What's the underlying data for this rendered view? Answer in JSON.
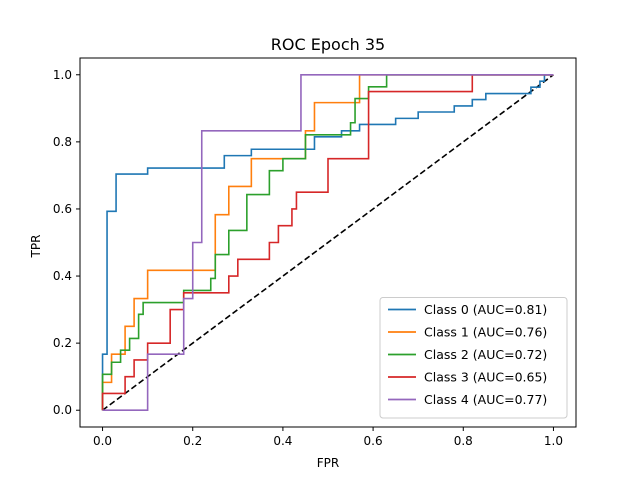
{
  "chart_data": {
    "type": "line",
    "title": "ROC Epoch 35",
    "xlabel": "FPR",
    "ylabel": "TPR",
    "xlim": [
      -0.05,
      1.05
    ],
    "ylim": [
      -0.05,
      1.05
    ],
    "xticks": [
      "0.0",
      "0.2",
      "0.4",
      "0.6",
      "0.8",
      "1.0"
    ],
    "yticks": [
      "0.0",
      "0.2",
      "0.4",
      "0.6",
      "0.8",
      "1.0"
    ],
    "grid": false,
    "legend_position": "lower-right",
    "diagonal": {
      "x": [
        0,
        1
      ],
      "y": [
        0,
        1
      ],
      "style": "dashed",
      "color": "#000000"
    },
    "series": [
      {
        "name": "Class 0 (AUC=0.81)",
        "color": "#1f77b4",
        "x": [
          0,
          0,
          0.01,
          0.01,
          0.02,
          0.02,
          0.03,
          0.03,
          0.1,
          0.1,
          0.27,
          0.27,
          0.33,
          0.33,
          0.47,
          0.47,
          0.53,
          0.53,
          0.55,
          0.55,
          0.57,
          0.57,
          0.6,
          0.6,
          0.65,
          0.65,
          0.7,
          0.7,
          0.78,
          0.78,
          0.82,
          0.82,
          0.85,
          0.85,
          0.88,
          0.88,
          0.95,
          0.95,
          0.97,
          0.97,
          0.98,
          0.98,
          1.0
        ],
        "y": [
          0,
          0.167,
          0.167,
          0.593,
          0.593,
          0.593,
          0.593,
          0.704,
          0.704,
          0.722,
          0.722,
          0.759,
          0.759,
          0.778,
          0.778,
          0.815,
          0.815,
          0.833,
          0.833,
          0.833,
          0.833,
          0.852,
          0.852,
          0.852,
          0.852,
          0.87,
          0.87,
          0.889,
          0.889,
          0.907,
          0.907,
          0.926,
          0.926,
          0.944,
          0.944,
          0.944,
          0.944,
          0.963,
          0.963,
          0.981,
          0.981,
          1.0,
          1.0
        ]
      },
      {
        "name": "Class 1 (AUC=0.76)",
        "color": "#ff7f0e",
        "x": [
          0,
          0,
          0.02,
          0.02,
          0.05,
          0.05,
          0.07,
          0.07,
          0.1,
          0.1,
          0.25,
          0.25,
          0.28,
          0.28,
          0.33,
          0.33,
          0.45,
          0.45,
          0.47,
          0.47,
          0.56,
          0.56,
          0.57,
          0.57,
          1.0
        ],
        "y": [
          0,
          0.083,
          0.083,
          0.167,
          0.167,
          0.25,
          0.25,
          0.333,
          0.333,
          0.417,
          0.417,
          0.583,
          0.583,
          0.667,
          0.667,
          0.75,
          0.75,
          0.833,
          0.833,
          0.917,
          0.917,
          0.917,
          0.917,
          1.0,
          1.0
        ]
      },
      {
        "name": "Class 2 (AUC=0.72)",
        "color": "#2ca02c",
        "x": [
          0,
          0,
          0.02,
          0.02,
          0.04,
          0.04,
          0.06,
          0.06,
          0.08,
          0.08,
          0.09,
          0.09,
          0.18,
          0.18,
          0.24,
          0.24,
          0.25,
          0.25,
          0.28,
          0.28,
          0.32,
          0.32,
          0.37,
          0.37,
          0.4,
          0.4,
          0.45,
          0.45,
          0.55,
          0.55,
          0.56,
          0.56,
          0.59,
          0.59,
          0.63,
          0.63,
          1.0
        ],
        "y": [
          0,
          0.107,
          0.107,
          0.143,
          0.143,
          0.179,
          0.179,
          0.214,
          0.214,
          0.286,
          0.286,
          0.321,
          0.321,
          0.357,
          0.357,
          0.393,
          0.393,
          0.464,
          0.464,
          0.536,
          0.536,
          0.643,
          0.643,
          0.714,
          0.714,
          0.75,
          0.75,
          0.821,
          0.821,
          0.857,
          0.857,
          0.929,
          0.929,
          0.964,
          0.964,
          1.0,
          1.0
        ]
      },
      {
        "name": "Class 3 (AUC=0.65)",
        "color": "#d62728",
        "x": [
          0,
          0,
          0.05,
          0.05,
          0.07,
          0.07,
          0.1,
          0.1,
          0.15,
          0.15,
          0.18,
          0.18,
          0.28,
          0.28,
          0.3,
          0.3,
          0.37,
          0.37,
          0.39,
          0.39,
          0.42,
          0.42,
          0.43,
          0.43,
          0.5,
          0.5,
          0.59,
          0.59,
          0.6,
          0.6,
          0.82,
          0.82,
          1.0
        ],
        "y": [
          0,
          0.05,
          0.05,
          0.1,
          0.1,
          0.15,
          0.15,
          0.2,
          0.2,
          0.3,
          0.3,
          0.35,
          0.35,
          0.4,
          0.4,
          0.45,
          0.45,
          0.5,
          0.5,
          0.55,
          0.55,
          0.6,
          0.6,
          0.65,
          0.65,
          0.75,
          0.75,
          0.95,
          0.95,
          0.95,
          0.95,
          1.0,
          1.0
        ]
      },
      {
        "name": "Class 4 (AUC=0.77)",
        "color": "#9467bd",
        "x": [
          0,
          0.1,
          0.1,
          0.18,
          0.18,
          0.2,
          0.2,
          0.22,
          0.22,
          0.44,
          0.44,
          1.0
        ],
        "y": [
          0,
          0,
          0.167,
          0.167,
          0.333,
          0.333,
          0.5,
          0.5,
          0.833,
          0.833,
          1.0,
          1.0
        ]
      }
    ]
  }
}
